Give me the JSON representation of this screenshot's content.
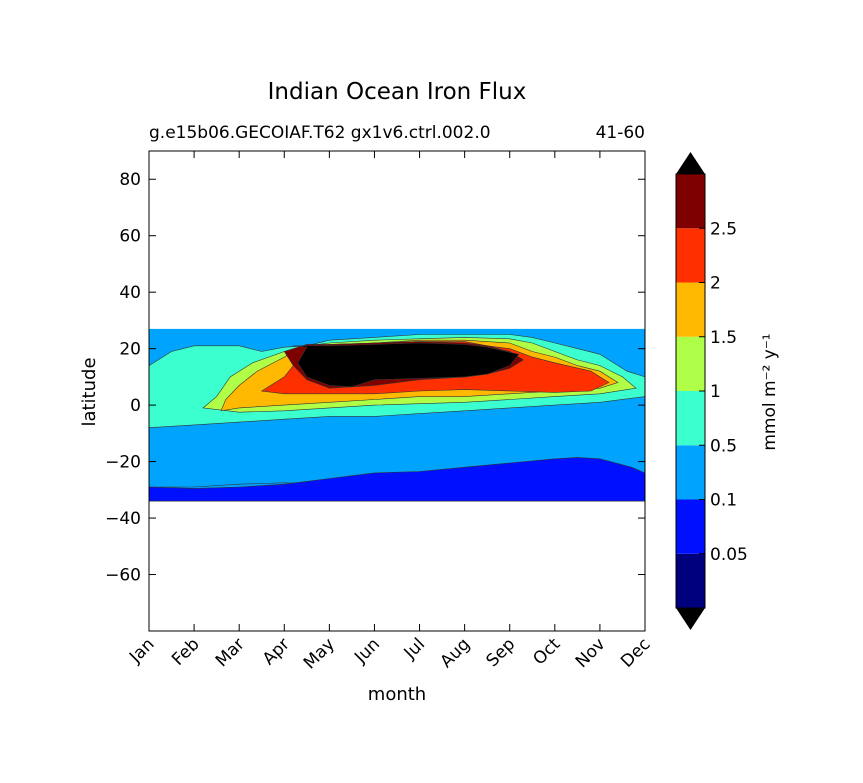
{
  "chart_data": {
    "type": "contour",
    "title": "Indian Ocean Iron Flux",
    "subtitle_left": "g.e15b06.GECOIAF.T62 gx1v6.ctrl.002.0",
    "subtitle_right": "41-60",
    "xlabel": "month",
    "ylabel": "latitude",
    "x_categories": [
      "Jan",
      "Feb",
      "Mar",
      "Apr",
      "May",
      "Jun",
      "Jul",
      "Aug",
      "Sep",
      "Oct",
      "Nov",
      "Dec"
    ],
    "xlim": [
      0,
      11
    ],
    "ylim": [
      -80,
      90
    ],
    "y_ticks": [
      80,
      60,
      40,
      20,
      0,
      -20,
      -40,
      -60
    ],
    "y_tick_labels": [
      "80",
      "60",
      "40",
      "20",
      "0",
      "−20",
      "−40",
      "−60"
    ],
    "data_lat_range": [
      -34,
      27
    ],
    "colorbar": {
      "label": "mmol m⁻² y⁻¹",
      "extend": "both",
      "levels": [
        0.05,
        0.1,
        0.5,
        1,
        1.5,
        2,
        2.5
      ],
      "tick_labels": [
        "0.05",
        "0.1",
        "0.5",
        "1",
        "1.5",
        "2",
        "2.5"
      ],
      "colors": [
        "#00007f",
        "#0010ff",
        "#00a4ff",
        "#3bffcf",
        "#afff48",
        "#ffb900",
        "#ff3000",
        "#7f0000"
      ],
      "under_color": "#000000",
      "over_color": "#000000"
    },
    "contours": [
      {
        "level_index": 2,
        "points": [
          [
            0,
            -29
          ],
          [
            1,
            -29
          ],
          [
            2,
            -28
          ],
          [
            3,
            -27.5
          ],
          [
            4,
            -28
          ],
          [
            5,
            -29
          ],
          [
            6,
            -29
          ],
          [
            7,
            -28
          ],
          [
            8,
            -27
          ],
          [
            9,
            -26
          ],
          [
            9.8,
            -26
          ],
          [
            9.8,
            -28
          ],
          [
            11,
            -29
          ],
          [
            11,
            -34
          ],
          [
            0,
            -34
          ]
        ]
      },
      {
        "level_index": 1,
        "points": [
          [
            0,
            -29
          ],
          [
            1,
            -29.5
          ],
          [
            2,
            -29
          ],
          [
            3,
            -28
          ],
          [
            3.5,
            -27
          ],
          [
            4,
            -26
          ],
          [
            4.5,
            -25
          ],
          [
            5,
            -24
          ],
          [
            6,
            -23.5
          ],
          [
            7,
            -22
          ],
          [
            8,
            -20.5
          ],
          [
            9,
            -19
          ],
          [
            9.5,
            -18.5
          ],
          [
            10,
            -19
          ],
          [
            10.7,
            -22
          ],
          [
            11,
            -24
          ],
          [
            11,
            -34
          ],
          [
            0,
            -34
          ]
        ]
      },
      {
        "level_index": 3,
        "points": [
          [
            0,
            14
          ],
          [
            0.5,
            19
          ],
          [
            1,
            21
          ],
          [
            2,
            21
          ],
          [
            2.5,
            19
          ],
          [
            3,
            20.5
          ],
          [
            3.5,
            21
          ],
          [
            4,
            23
          ],
          [
            5,
            24
          ],
          [
            6,
            25
          ],
          [
            7,
            25
          ],
          [
            8,
            25
          ],
          [
            8.5,
            24
          ],
          [
            9,
            22
          ],
          [
            9.5,
            20
          ],
          [
            10,
            18
          ],
          [
            10.6,
            12
          ],
          [
            11,
            10
          ],
          [
            11,
            3
          ],
          [
            10,
            1
          ],
          [
            9,
            0
          ],
          [
            8,
            -1
          ],
          [
            7,
            -2
          ],
          [
            6,
            -3
          ],
          [
            5,
            -4
          ],
          [
            4,
            -4
          ],
          [
            3,
            -5
          ],
          [
            2,
            -6
          ],
          [
            1,
            -7
          ],
          [
            0,
            -8
          ]
        ]
      },
      {
        "level_index": 4,
        "points": [
          [
            1.2,
            -1
          ],
          [
            1.5,
            3
          ],
          [
            1.8,
            10
          ],
          [
            2.3,
            15
          ],
          [
            3,
            19
          ],
          [
            3.5,
            21
          ],
          [
            4,
            22
          ],
          [
            5,
            23
          ],
          [
            6,
            23.5
          ],
          [
            7,
            24
          ],
          [
            8,
            23.5
          ],
          [
            8.5,
            22
          ],
          [
            9,
            19
          ],
          [
            9.5,
            16
          ],
          [
            10,
            14
          ],
          [
            10.5,
            10
          ],
          [
            10.8,
            6
          ],
          [
            10,
            4
          ],
          [
            9,
            3
          ],
          [
            8,
            2
          ],
          [
            7,
            1
          ],
          [
            6,
            0.5
          ],
          [
            5,
            0
          ],
          [
            4,
            -1
          ],
          [
            3,
            -2
          ],
          [
            2,
            -2.5
          ]
        ]
      },
      {
        "level_index": 5,
        "points": [
          [
            1.6,
            -2
          ],
          [
            1.7,
            2
          ],
          [
            2,
            7
          ],
          [
            2.4,
            12
          ],
          [
            3,
            17
          ],
          [
            3.3,
            20
          ],
          [
            4,
            21
          ],
          [
            5,
            22
          ],
          [
            6,
            23
          ],
          [
            7,
            23
          ],
          [
            8,
            22
          ],
          [
            8.5,
            19
          ],
          [
            9,
            17
          ],
          [
            9.5,
            14
          ],
          [
            10,
            12
          ],
          [
            10.4,
            8
          ],
          [
            10,
            6
          ],
          [
            9,
            5
          ],
          [
            8,
            4
          ],
          [
            7,
            3
          ],
          [
            6,
            3
          ],
          [
            5,
            2
          ],
          [
            4,
            1
          ],
          [
            3,
            0
          ],
          [
            2,
            -1
          ]
        ]
      },
      {
        "level_index": 6,
        "points": [
          [
            2.5,
            5
          ],
          [
            3,
            10
          ],
          [
            3.3,
            16
          ],
          [
            3.5,
            20
          ],
          [
            4,
            21.5
          ],
          [
            5,
            22
          ],
          [
            6,
            22.5
          ],
          [
            7,
            22.5
          ],
          [
            7.5,
            21
          ],
          [
            8,
            20
          ],
          [
            8.5,
            17
          ],
          [
            9,
            15
          ],
          [
            9.8,
            12
          ],
          [
            10.2,
            8
          ],
          [
            9.8,
            5
          ],
          [
            9,
            4.5
          ],
          [
            8,
            5
          ],
          [
            7,
            5.5
          ],
          [
            6,
            5
          ],
          [
            5,
            4
          ],
          [
            4,
            4
          ],
          [
            3,
            4
          ]
        ]
      },
      {
        "level_index": 7,
        "points": [
          [
            3,
            19
          ],
          [
            3.5,
            21.5
          ],
          [
            4,
            21.5
          ],
          [
            5,
            22
          ],
          [
            6,
            22.5
          ],
          [
            7,
            22
          ],
          [
            7.5,
            21
          ],
          [
            8,
            19
          ],
          [
            8.3,
            16
          ],
          [
            8,
            13
          ],
          [
            7.5,
            11
          ],
          [
            7,
            10
          ],
          [
            6,
            9
          ],
          [
            5,
            7
          ],
          [
            4,
            6
          ],
          [
            3.5,
            9
          ],
          [
            3.2,
            14
          ]
        ]
      },
      {
        "level_index": 8,
        "points": [
          [
            3.5,
            20.5
          ],
          [
            3.2,
            21
          ],
          [
            4,
            21
          ],
          [
            5,
            21.5
          ],
          [
            6,
            22
          ],
          [
            7,
            21.5
          ],
          [
            7.5,
            20.5
          ],
          [
            8.2,
            18
          ],
          [
            8,
            14
          ],
          [
            7.5,
            11
          ],
          [
            7,
            10
          ],
          [
            6,
            9.5
          ],
          [
            5,
            9
          ],
          [
            4.5,
            6.5
          ],
          [
            4,
            7
          ],
          [
            3.5,
            10
          ],
          [
            3.3,
            15
          ]
        ]
      }
    ]
  }
}
